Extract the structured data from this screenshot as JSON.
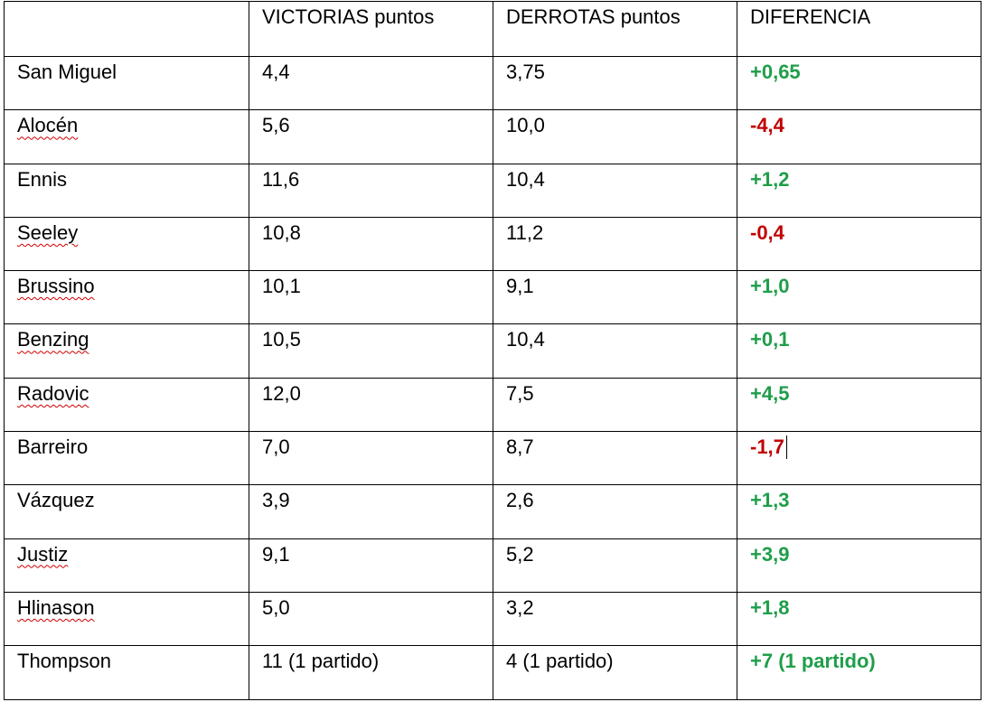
{
  "headers": [
    "",
    "VICTORIAS puntos",
    "DERROTAS puntos",
    "DIFERENCIA"
  ],
  "rows": [
    {
      "name": "San Miguel",
      "wins": "4,4",
      "losses": "3,75",
      "diff": "+0,65",
      "sign": "pos",
      "spell": false
    },
    {
      "name": "Alocén",
      "wins": "5,6",
      "losses": "10,0",
      "diff": "-4,4",
      "sign": "neg",
      "spell": true
    },
    {
      "name": "Ennis",
      "wins": "11,6",
      "losses": "10,4",
      "diff": "+1,2",
      "sign": "pos",
      "spell": false
    },
    {
      "name": "Seeley",
      "wins": "10,8",
      "losses": "11,2",
      "diff": "-0,4",
      "sign": "neg",
      "spell": true
    },
    {
      "name": "Brussino",
      "wins": "10,1",
      "losses": "9,1",
      "diff": "+1,0",
      "sign": "pos",
      "spell": true
    },
    {
      "name": "Benzing",
      "wins": "10,5",
      "losses": "10,4",
      "diff": "+0,1",
      "sign": "pos",
      "spell": true
    },
    {
      "name": "Radovic",
      "wins": "12,0",
      "losses": "7,5",
      "diff": "+4,5",
      "sign": "pos",
      "spell": true
    },
    {
      "name": "Barreiro",
      "wins": "7,0",
      "losses": "8,7",
      "diff": "-1,7",
      "sign": "neg",
      "spell": false
    },
    {
      "name": "Vázquez",
      "wins": "3,9",
      "losses": "2,6",
      "diff": "+1,3",
      "sign": "pos",
      "spell": false
    },
    {
      "name": "Justiz",
      "wins": "9,1",
      "losses": "5,2",
      "diff": "+3,9",
      "sign": "pos",
      "spell": true
    },
    {
      "name": "Hlinason",
      "wins": "5,0",
      "losses": "3,2",
      "diff": "+1,8",
      "sign": "pos",
      "spell": true
    },
    {
      "name": "Thompson",
      "wins": "11 (1 partido)",
      "losses": "4 (1 partido)",
      "diff": "+7 (1 partido)",
      "sign": "pos",
      "spell": false
    }
  ],
  "colors": {
    "positive": "#1f9e4a",
    "negative": "#c00000",
    "spellcheck": "#d00000"
  },
  "cursor_row": 7
}
